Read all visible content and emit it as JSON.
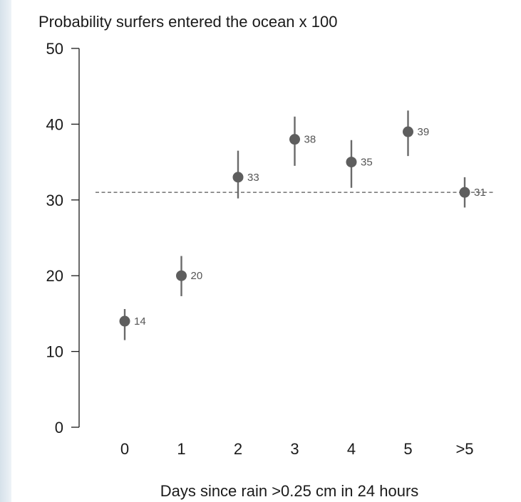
{
  "chart_data": {
    "type": "scatter",
    "title": "Probability surfers entered the ocean x 100",
    "xlabel": "Days since rain >0.25 cm in 24 hours",
    "ylabel": "",
    "categories": [
      "0",
      "1",
      "2",
      "3",
      "4",
      "5",
      ">5"
    ],
    "values": [
      14,
      20,
      33,
      38,
      35,
      39,
      31
    ],
    "point_labels": [
      "14",
      "20",
      "33",
      "38",
      "35",
      "39",
      "31"
    ],
    "error_low": [
      11.5,
      17.3,
      30.2,
      34.5,
      31.6,
      35.8,
      29.0
    ],
    "error_high": [
      15.6,
      22.6,
      36.5,
      41.0,
      37.9,
      41.8,
      33.0
    ],
    "yticks": [
      "0",
      "10",
      "20",
      "30",
      "40",
      "50"
    ],
    "ylim": [
      0,
      50
    ],
    "reference_line": 31,
    "grid": false,
    "colors": {
      "point": "#5e5e5e",
      "errorbar": "#6a6a6a",
      "reference_line": "#555555",
      "axis": "#1a1a1a"
    }
  }
}
